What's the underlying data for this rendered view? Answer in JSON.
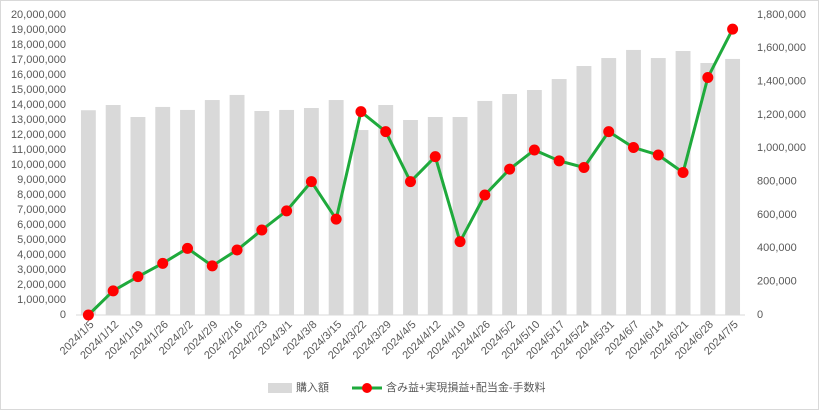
{
  "chart_data": {
    "type": "bar-line",
    "categories": [
      "2024/1/5",
      "2024/1/12",
      "2024/1/19",
      "2024/1/26",
      "2024/2/2",
      "2024/2/9",
      "2024/2/16",
      "2024/2/23",
      "2024/3/1",
      "2024/3/8",
      "2024/3/15",
      "2024/3/22",
      "2024/3/29",
      "2024/4/5",
      "2024/4/12",
      "2024/4/19",
      "2024/4/26",
      "2024/5/2",
      "2024/5/10",
      "2024/5/17",
      "2024/5/24",
      "2024/5/31",
      "2024/6/7",
      "2024/6/14",
      "2024/6/21",
      "2024/6/28",
      "2024/7/5"
    ],
    "series": [
      {
        "name": "購入額",
        "type": "bar",
        "color": "#d9d9d9",
        "values": [
          13650000,
          14000000,
          13200000,
          13870000,
          13670000,
          14330000,
          14670000,
          13600000,
          13670000,
          13800000,
          14330000,
          12330000,
          14000000,
          13000000,
          13200000,
          13200000,
          14270000,
          14730000,
          15000000,
          15730000,
          16600000,
          17130000,
          17670000,
          17130000,
          17600000,
          16800000,
          17070000
        ]
      },
      {
        "name": "含み益+実現損益+配当金-手数料",
        "type": "line",
        "axis": "y2",
        "color": "#1faa3c",
        "marker_color": "#ff0000",
        "values": [
          0,
          145000,
          230000,
          310000,
          400000,
          295000,
          390000,
          510000,
          625000,
          800000,
          575000,
          1220000,
          1100000,
          800000,
          950000,
          440000,
          720000,
          875000,
          990000,
          925000,
          885000,
          1100000,
          1005000,
          960000,
          855000,
          1425000,
          1715000
        ]
      }
    ],
    "ylim": [
      0,
      20000000
    ],
    "yticks": [
      0,
      {
        "value": 1000000,
        "label": "1,000,000"
      },
      {
        "value": 2000000,
        "label": "2,000,000"
      },
      {
        "value": 3000000,
        "label": "3,000,000"
      },
      {
        "value": 4000000,
        "label": "4,000,000"
      },
      {
        "value": 5000000,
        "label": "5,000,000"
      },
      {
        "value": 6000000,
        "label": "6,000,000"
      },
      {
        "value": 7000000,
        "label": "7,000,000"
      },
      {
        "value": 8000000,
        "label": "8,000,000"
      },
      {
        "value": 9000000,
        "label": "9,000,000"
      },
      {
        "value": 10000000,
        "label": "10,000,000"
      },
      {
        "value": 11000000,
        "label": "11,000,000"
      },
      {
        "value": 12000000,
        "label": "12,000,000"
      },
      {
        "value": 13000000,
        "label": "13,000,000"
      },
      {
        "value": 14000000,
        "label": "14,000,000"
      },
      {
        "value": 15000000,
        "label": "15,000,000"
      },
      {
        "value": 16000000,
        "label": "16,000,000"
      },
      {
        "value": 17000000,
        "label": "17,000,000"
      },
      {
        "value": 18000000,
        "label": "18,000,000"
      },
      {
        "value": 19000000,
        "label": "19,000,000"
      },
      {
        "value": 20000000,
        "label": "20,000,000"
      }
    ],
    "y2lim": [
      0,
      1800000
    ],
    "y2ticks": [
      0,
      {
        "value": 200000,
        "label": "200,000"
      },
      {
        "value": 400000,
        "label": "400,000"
      },
      {
        "value": 600000,
        "label": "600,000"
      },
      {
        "value": 800000,
        "label": "800,000"
      },
      {
        "value": 1000000,
        "label": "1,000,000"
      },
      {
        "value": 1200000,
        "label": "1,200,000"
      },
      {
        "value": 1400000,
        "label": "1,400,000"
      },
      {
        "value": 1600000,
        "label": "1,600,000"
      },
      {
        "value": 1800000,
        "label": "1,800,000"
      }
    ],
    "legend": "bottom"
  }
}
